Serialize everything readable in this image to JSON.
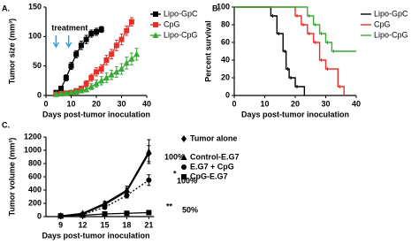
{
  "chart_data": [
    {
      "type": "line",
      "panel_label": "A.",
      "ylabel": "Tumor size (mm³)",
      "xlabel": "Days post-tumor inoculation",
      "xlim": [
        0,
        40
      ],
      "xticks": [
        0,
        10,
        20,
        30,
        40
      ],
      "ylim": [
        0,
        150
      ],
      "yticks": [
        0,
        50,
        100,
        150
      ],
      "legend": "right",
      "annotation": "treatment",
      "treatment_days": [
        4,
        9
      ],
      "treatment_color": "#29a8e0",
      "series": [
        {
          "name": "Lipo-GpC",
          "color": "#000000",
          "marker": "square",
          "x": [
            4,
            6,
            8,
            10,
            12,
            14,
            16,
            18,
            20,
            22
          ],
          "values": [
            5,
            12,
            30,
            50,
            70,
            85,
            95,
            105,
            108,
            112
          ],
          "errors": [
            2,
            3,
            5,
            6,
            6,
            7,
            7,
            6,
            6,
            5
          ]
        },
        {
          "name": "CpG",
          "color": "#e8302a",
          "marker": "square",
          "x": [
            4,
            6,
            8,
            10,
            12,
            14,
            16,
            18,
            20,
            22,
            24,
            26,
            28,
            30,
            32,
            34
          ],
          "values": [
            2,
            3,
            4,
            5,
            8,
            12,
            20,
            30,
            40,
            45,
            60,
            70,
            85,
            95,
            110,
            125
          ],
          "errors": [
            1,
            1,
            2,
            2,
            3,
            4,
            5,
            6,
            7,
            7,
            8,
            8,
            9,
            9,
            8,
            7
          ]
        },
        {
          "name": "Lipo-CpG",
          "color": "#3aa935",
          "marker": "triangle",
          "x": [
            4,
            6,
            8,
            10,
            12,
            14,
            16,
            18,
            20,
            22,
            24,
            26,
            28,
            30,
            32,
            34,
            36
          ],
          "values": [
            2,
            3,
            4,
            5,
            6,
            8,
            10,
            15,
            20,
            25,
            30,
            35,
            40,
            45,
            55,
            62,
            70
          ],
          "errors": [
            1,
            1,
            2,
            2,
            2,
            3,
            4,
            5,
            6,
            7,
            8,
            8,
            9,
            9,
            10,
            10,
            10
          ]
        }
      ]
    },
    {
      "type": "step",
      "panel_label": "B.",
      "ylabel": "Percent survival",
      "xlabel": "Days post-tumor inoculation",
      "xlim": [
        0,
        40
      ],
      "xticks": [
        0,
        10,
        20,
        30,
        40
      ],
      "ylim": [
        0,
        100
      ],
      "yticks": [
        0,
        20,
        40,
        60,
        80,
        100
      ],
      "legend": "right",
      "series": [
        {
          "name": "Lipo-GpC",
          "color": "#000000",
          "x": [
            0,
            12,
            14,
            16,
            17,
            18,
            20,
            23
          ],
          "values": [
            100,
            90,
            70,
            50,
            30,
            20,
            10,
            0
          ]
        },
        {
          "name": "CpG",
          "color": "#e8302a",
          "x": [
            0,
            20,
            22,
            24,
            26,
            28,
            30,
            34,
            36
          ],
          "values": [
            100,
            90,
            80,
            70,
            60,
            40,
            30,
            10,
            0
          ]
        },
        {
          "name": "Lipo-CpG",
          "color": "#3aa935",
          "x": [
            0,
            24,
            26,
            28,
            30,
            32,
            40
          ],
          "values": [
            100,
            90,
            80,
            70,
            60,
            50,
            50
          ]
        }
      ]
    },
    {
      "type": "line",
      "panel_label": "C.",
      "ylabel": "Tumor volume (mm³)",
      "xlabel": "Days post-tumor inoculation",
      "xlim": [
        7,
        23
      ],
      "xticks": [
        9,
        12,
        15,
        18,
        21
      ],
      "ylim": [
        0,
        1200
      ],
      "yticks": [
        0,
        200,
        400,
        600,
        800,
        1000,
        1200
      ],
      "legend": "right",
      "annotations": [
        "100%",
        "*",
        "100%",
        "**",
        "50%"
      ],
      "series": [
        {
          "name": "Tumor alone",
          "color": "#000000",
          "marker": "diamond",
          "x": [
            9,
            12,
            15,
            18,
            21
          ],
          "values": [
            10,
            40,
            180,
            380,
            950
          ],
          "errors": [
            5,
            15,
            30,
            50,
            120
          ]
        },
        {
          "name": "Control-E.G7",
          "color": "#000000",
          "marker": "triangle",
          "x": [
            9,
            12,
            15,
            18,
            21
          ],
          "values": [
            10,
            50,
            200,
            400,
            980
          ],
          "errors": [
            5,
            15,
            30,
            60,
            180
          ]
        },
        {
          "name": "E.G7 + CpG",
          "color": "#000000",
          "marker": "circle",
          "dash": "2,2",
          "x": [
            9,
            12,
            15,
            18,
            21
          ],
          "values": [
            10,
            30,
            140,
            320,
            550
          ],
          "errors": [
            5,
            10,
            25,
            40,
            80
          ]
        },
        {
          "name": "CpG-E.G7",
          "color": "#000000",
          "marker": "square",
          "x": [
            9,
            12,
            15,
            18,
            21
          ],
          "values": [
            10,
            20,
            40,
            50,
            60
          ],
          "errors": [
            3,
            5,
            8,
            10,
            12
          ]
        }
      ]
    }
  ]
}
